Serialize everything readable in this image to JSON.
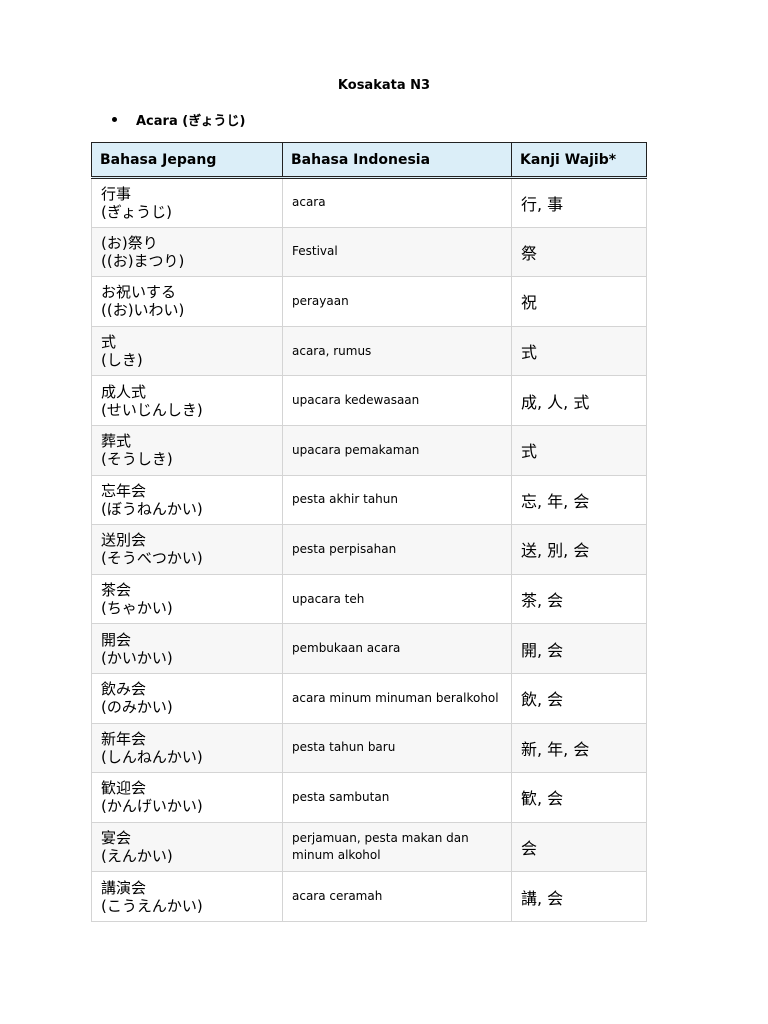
{
  "document": {
    "title": "Kosakata N3",
    "section_label": "Acara (ぎょうじ)"
  },
  "table": {
    "headers": [
      "Bahasa Jepang",
      "Bahasa Indonesia",
      "Kanji Wajib*"
    ],
    "rows": [
      {
        "word": "行事",
        "reading": "(ぎょうじ)",
        "meaning": "acara",
        "kanji": "行, 事"
      },
      {
        "word": "(お)祭り",
        "reading": "((お)まつり)",
        "meaning": "Festival",
        "kanji": "祭"
      },
      {
        "word": "お祝いする",
        "reading": "((お)いわい)",
        "meaning": "perayaan",
        "kanji": "祝"
      },
      {
        "word": "式",
        "reading": "(しき)",
        "meaning": "acara, rumus",
        "kanji": "式"
      },
      {
        "word": "成人式",
        "reading": "(せいじんしき)",
        "meaning": "upacara kedewasaan",
        "kanji": "成, 人, 式"
      },
      {
        "word": "葬式",
        "reading": "(そうしき)",
        "meaning": "upacara pemakaman",
        "kanji": "式"
      },
      {
        "word": "忘年会",
        "reading": "(ぼうねんかい)",
        "meaning": "pesta akhir tahun",
        "kanji": "忘, 年, 会"
      },
      {
        "word": "送別会",
        "reading": "(そうべつかい)",
        "meaning": "pesta perpisahan",
        "kanji": "送, 別, 会"
      },
      {
        "word": "茶会",
        "reading": "(ちゃかい)",
        "meaning": "upacara teh",
        "kanji": "茶, 会"
      },
      {
        "word": "開会",
        "reading": "(かいかい)",
        "meaning": "pembukaan acara",
        "kanji": "開, 会"
      },
      {
        "word": "飲み会",
        "reading": "(のみかい)",
        "meaning": "acara minum minuman beralkohol",
        "kanji": "飲, 会"
      },
      {
        "word": "新年会",
        "reading": "(しんねんかい)",
        "meaning": "pesta tahun baru",
        "kanji": "新, 年, 会"
      },
      {
        "word": "歓迎会",
        "reading": "(かんげいかい)",
        "meaning": "pesta sambutan",
        "kanji": "歓, 会"
      },
      {
        "word": "宴会",
        "reading": "(えんかい)",
        "meaning": "perjamuan, pesta makan dan minum alkohol",
        "kanji": "会"
      },
      {
        "word": "講演会",
        "reading": "(こうえんかい)",
        "meaning": "acara ceramah",
        "kanji": "講, 会"
      }
    ]
  }
}
